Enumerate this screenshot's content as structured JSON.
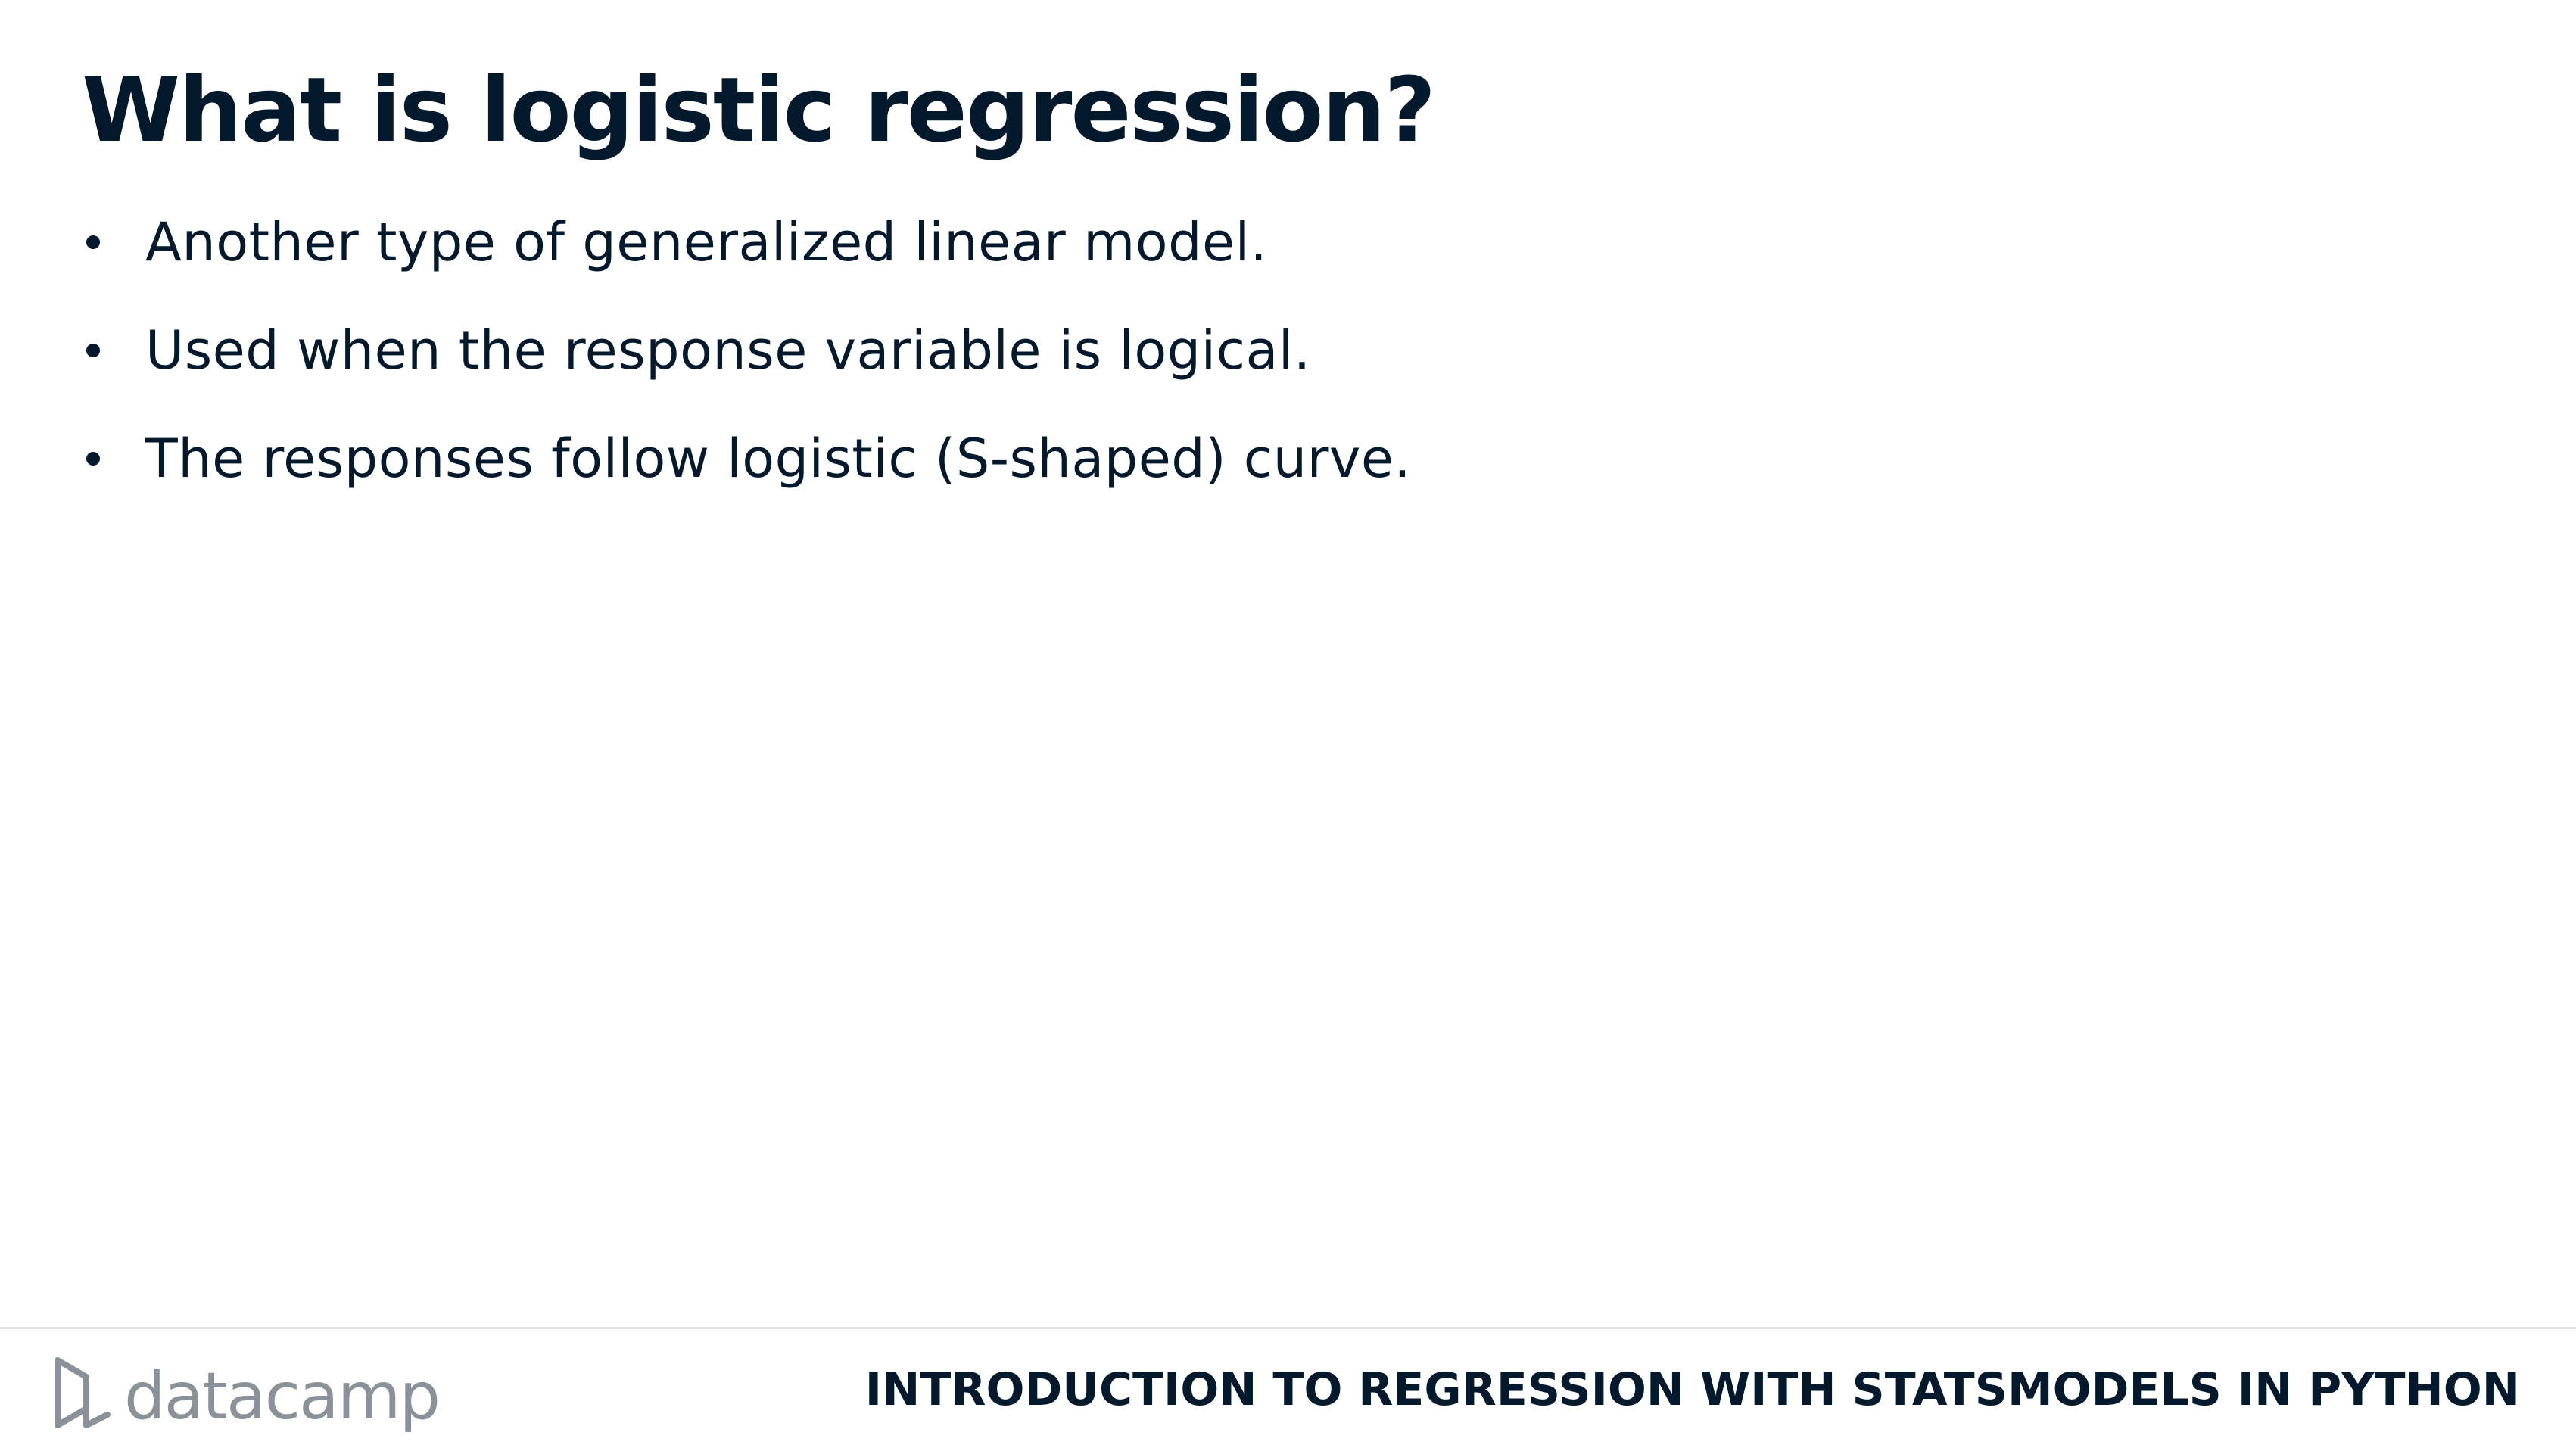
{
  "slide": {
    "title": "What is logistic regression?",
    "bullets": [
      "Another type of generalized linear model.",
      "Used when the response variable is logical.",
      "The responses follow logistic (S-shaped) curve."
    ]
  },
  "footer": {
    "brand_name": "datacamp",
    "course_title": "INTRODUCTION TO REGRESSION WITH STATSMODELS IN PYTHON"
  },
  "colors": {
    "text": "#05192d",
    "brand_gray": "#8a9199",
    "rule": "#e2e4e6",
    "background": "#ffffff"
  },
  "icons": {
    "brand_logo": "datacamp-logo-icon",
    "bullet": "bullet-dot-icon"
  }
}
